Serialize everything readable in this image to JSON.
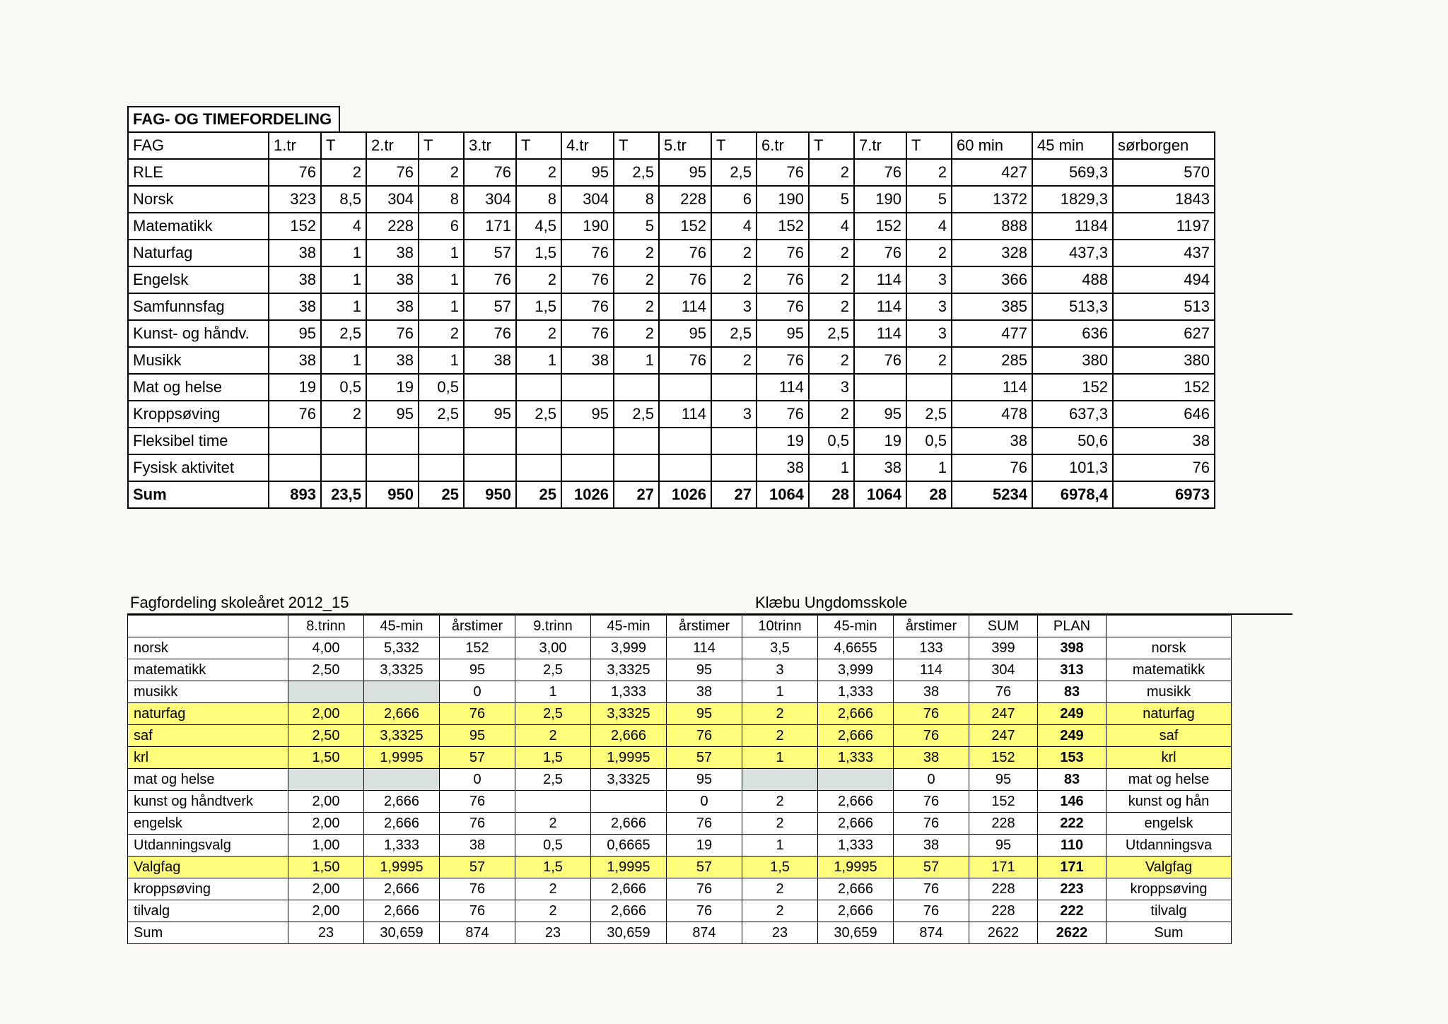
{
  "colors": {
    "page_bg": "#f9f8f4",
    "cell_bg": "#ffffff",
    "border": "#000000",
    "highlight": "#fffd7a",
    "gray_cell": "#d8e0e0",
    "text": "#000000"
  },
  "table1": {
    "title": "FAG- OG TIMEFORDELING",
    "columns": [
      "FAG",
      "1.tr",
      "T",
      "2.tr",
      "T",
      "3.tr",
      "T",
      "4.tr",
      "T",
      "5.tr",
      "T",
      "6.tr",
      "T",
      "7.tr",
      "T",
      "60 min",
      "45 min",
      "sørborgen"
    ],
    "col_classes": [
      "c-fag",
      "c-w",
      "c-n",
      "c-w",
      "c-n",
      "c-w",
      "c-n",
      "c-w",
      "c-n",
      "c-w",
      "c-n",
      "c-w",
      "c-n",
      "c-w",
      "c-n",
      "c-t1",
      "c-t2",
      "c-t3"
    ],
    "rows": [
      {
        "label": "RLE",
        "cells": [
          "76",
          "2",
          "76",
          "2",
          "76",
          "2",
          "95",
          "2,5",
          "95",
          "2,5",
          "76",
          "2",
          "76",
          "2",
          "427",
          "569,3",
          "570"
        ]
      },
      {
        "label": "Norsk",
        "cells": [
          "323",
          "8,5",
          "304",
          "8",
          "304",
          "8",
          "304",
          "8",
          "228",
          "6",
          "190",
          "5",
          "190",
          "5",
          "1372",
          "1829,3",
          "1843"
        ]
      },
      {
        "label": "Matematikk",
        "cells": [
          "152",
          "4",
          "228",
          "6",
          "171",
          "4,5",
          "190",
          "5",
          "152",
          "4",
          "152",
          "4",
          "152",
          "4",
          "888",
          "1184",
          "1197"
        ]
      },
      {
        "label": "Naturfag",
        "cells": [
          "38",
          "1",
          "38",
          "1",
          "57",
          "1,5",
          "76",
          "2",
          "76",
          "2",
          "76",
          "2",
          "76",
          "2",
          "328",
          "437,3",
          "437"
        ]
      },
      {
        "label": "Engelsk",
        "cells": [
          "38",
          "1",
          "38",
          "1",
          "76",
          "2",
          "76",
          "2",
          "76",
          "2",
          "76",
          "2",
          "114",
          "3",
          "366",
          "488",
          "494"
        ]
      },
      {
        "label": "Samfunnsfag",
        "cells": [
          "38",
          "1",
          "38",
          "1",
          "57",
          "1,5",
          "76",
          "2",
          "114",
          "3",
          "76",
          "2",
          "114",
          "3",
          "385",
          "513,3",
          "513"
        ]
      },
      {
        "label": "Kunst- og håndv.",
        "cells": [
          "95",
          "2,5",
          "76",
          "2",
          "76",
          "2",
          "76",
          "2",
          "95",
          "2,5",
          "95",
          "2,5",
          "114",
          "3",
          "477",
          "636",
          "627"
        ]
      },
      {
        "label": "Musikk",
        "cells": [
          "38",
          "1",
          "38",
          "1",
          "38",
          "1",
          "38",
          "1",
          "76",
          "2",
          "76",
          "2",
          "76",
          "2",
          "285",
          "380",
          "380"
        ]
      },
      {
        "label": "Mat og helse",
        "cells": [
          "19",
          "0,5",
          "19",
          "0,5",
          "",
          "",
          "",
          "",
          "",
          "",
          "114",
          "3",
          "",
          "",
          "114",
          "152",
          "152"
        ]
      },
      {
        "label": "Kroppsøving",
        "cells": [
          "76",
          "2",
          "95",
          "2,5",
          "95",
          "2,5",
          "95",
          "2,5",
          "114",
          "3",
          "76",
          "2",
          "95",
          "2,5",
          "478",
          "637,3",
          "646"
        ]
      },
      {
        "label": "Fleksibel time",
        "cells": [
          "",
          "",
          "",
          "",
          "",
          "",
          "",
          "",
          "",
          "",
          "19",
          "0,5",
          "19",
          "0,5",
          "38",
          "50,6",
          "38"
        ]
      },
      {
        "label": "Fysisk aktivitet",
        "cells": [
          "",
          "",
          "",
          "",
          "",
          "",
          "",
          "",
          "",
          "",
          "38",
          "1",
          "38",
          "1",
          "76",
          "101,3",
          "76"
        ]
      },
      {
        "label": "Sum",
        "sum": true,
        "cells": [
          "893",
          "23,5",
          "950",
          "25",
          "950",
          "25",
          "1026",
          "27",
          "1026",
          "27",
          "1064",
          "28",
          "1064",
          "28",
          "5234",
          "6978,4",
          "6973"
        ]
      }
    ]
  },
  "table2": {
    "title": "Fagfordeling skoleåret 2012_15",
    "school": "Klæbu Ungdomsskole",
    "columns": [
      "",
      "8.trinn",
      "45-min",
      "årstimer",
      "9.trinn",
      "45-min",
      "årstimer",
      "10trinn",
      "45-min",
      "årstimer",
      "SUM",
      "PLAN",
      ""
    ],
    "rows": [
      {
        "label": "norsk",
        "cells": [
          "4,00",
          "5,332",
          "152",
          "3,00",
          "3,999",
          "114",
          "3,5",
          "4,6655",
          "133",
          "399",
          "398",
          "norsk"
        ]
      },
      {
        "label": "matematikk",
        "cells": [
          "2,50",
          "3,3325",
          "95",
          "2,5",
          "3,3325",
          "95",
          "3",
          "3,999",
          "114",
          "304",
          "313",
          "matematikk"
        ]
      },
      {
        "label": "musikk",
        "cells": [
          "",
          "",
          "0",
          "1",
          "1,333",
          "38",
          "1",
          "1,333",
          "38",
          "76",
          "83",
          "musikk"
        ],
        "gray": [
          0,
          1
        ]
      },
      {
        "label": "naturfag",
        "hl": true,
        "cells": [
          "2,00",
          "2,666",
          "76",
          "2,5",
          "3,3325",
          "95",
          "2",
          "2,666",
          "76",
          "247",
          "249",
          "naturfag"
        ]
      },
      {
        "label": "saf",
        "hl": true,
        "cells": [
          "2,50",
          "3,3325",
          "95",
          "2",
          "2,666",
          "76",
          "2",
          "2,666",
          "76",
          "247",
          "249",
          "saf"
        ]
      },
      {
        "label": "krl",
        "hl": true,
        "cells": [
          "1,50",
          "1,9995",
          "57",
          "1,5",
          "1,9995",
          "57",
          "1",
          "1,333",
          "38",
          "152",
          "153",
          "krl"
        ]
      },
      {
        "label": "mat og helse",
        "cells": [
          "",
          "",
          "0",
          "2,5",
          "3,3325",
          "95",
          "",
          "",
          "0",
          "95",
          "83",
          "mat og helse"
        ],
        "gray": [
          0,
          1,
          6,
          7
        ]
      },
      {
        "label": "kunst og håndtverk",
        "cells": [
          "2,00",
          "2,666",
          "76",
          "",
          "",
          "0",
          "2",
          "2,666",
          "76",
          "152",
          "146",
          "kunst og hån"
        ]
      },
      {
        "label": "engelsk",
        "cells": [
          "2,00",
          "2,666",
          "76",
          "2",
          "2,666",
          "76",
          "2",
          "2,666",
          "76",
          "228",
          "222",
          "engelsk"
        ]
      },
      {
        "label": "Utdanningsvalg",
        "cells": [
          "1,00",
          "1,333",
          "38",
          "0,5",
          "0,6665",
          "19",
          "1",
          "1,333",
          "38",
          "95",
          "110",
          "Utdanningsva"
        ]
      },
      {
        "label": "Valgfag",
        "hl": true,
        "cells": [
          "1,50",
          "1,9995",
          "57",
          "1,5",
          "1,9995",
          "57",
          "1,5",
          "1,9995",
          "57",
          "171",
          "171",
          "Valgfag"
        ]
      },
      {
        "label": "kroppsøving",
        "cells": [
          "2,00",
          "2,666",
          "76",
          "2",
          "2,666",
          "76",
          "2",
          "2,666",
          "76",
          "228",
          "223",
          "kroppsøving"
        ]
      },
      {
        "label": "tilvalg",
        "cells": [
          "2,00",
          "2,666",
          "76",
          "2",
          "2,666",
          "76",
          "2",
          "2,666",
          "76",
          "228",
          "222",
          "tilvalg"
        ]
      },
      {
        "label": "Sum",
        "cells": [
          "23",
          "30,659",
          "874",
          "23",
          "30,659",
          "874",
          "23",
          "30,659",
          "874",
          "2622",
          "2622",
          "Sum"
        ]
      }
    ]
  }
}
